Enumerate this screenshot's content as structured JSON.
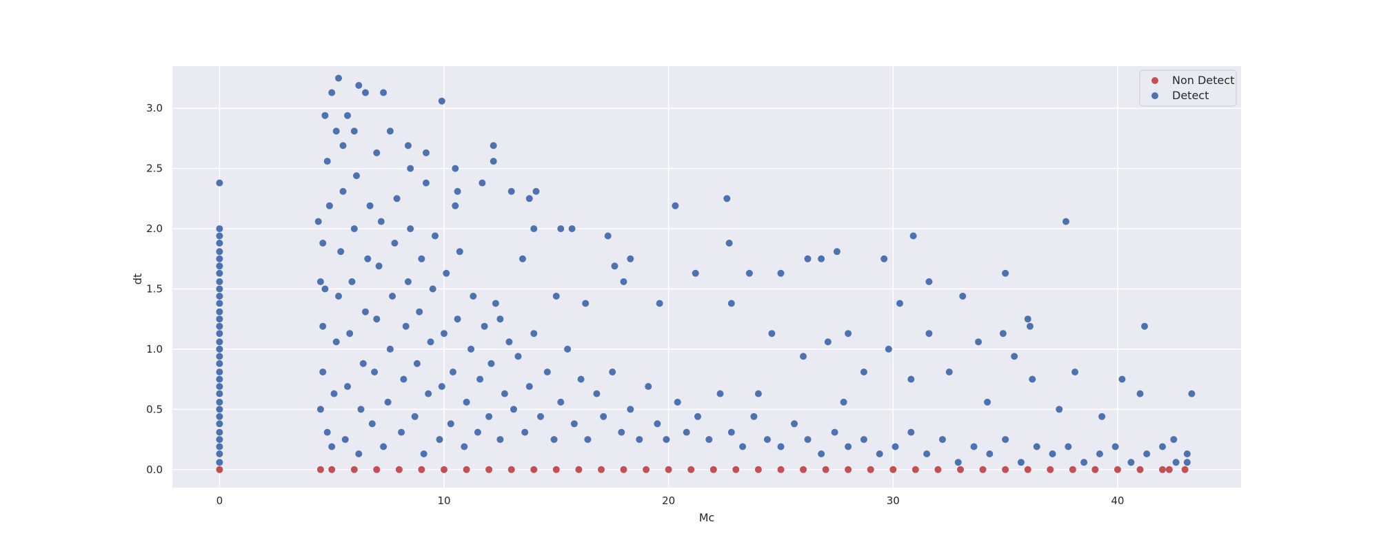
{
  "chart_data": {
    "type": "scatter",
    "title": "",
    "xlabel": "Mc",
    "ylabel": "dt",
    "xlim": [
      -2.1,
      45.5
    ],
    "ylim": [
      -0.15,
      3.35
    ],
    "xticks": [
      0,
      10,
      20,
      30,
      40
    ],
    "yticks": [
      0.0,
      0.5,
      1.0,
      1.5,
      2.0,
      2.5,
      3.0
    ],
    "grid": true,
    "legend_position": "top-right",
    "colors": {
      "background": "#eaeaf2",
      "grid": "#ffffff",
      "non_detect": "#c44e52",
      "detect": "#4c72b0"
    },
    "series": [
      {
        "name": "Non Detect",
        "color": "#c44e52",
        "points": [
          [
            0,
            0
          ],
          [
            4.5,
            0
          ],
          [
            5,
            0
          ],
          [
            6,
            0
          ],
          [
            7,
            0
          ],
          [
            8,
            0
          ],
          [
            9,
            0
          ],
          [
            10,
            0
          ],
          [
            11,
            0
          ],
          [
            12,
            0
          ],
          [
            13,
            0
          ],
          [
            14,
            0
          ],
          [
            15,
            0
          ],
          [
            16,
            0
          ],
          [
            17,
            0
          ],
          [
            18,
            0
          ],
          [
            19,
            0
          ],
          [
            20,
            0
          ],
          [
            21,
            0
          ],
          [
            22,
            0
          ],
          [
            23,
            0
          ],
          [
            24,
            0
          ],
          [
            25,
            0
          ],
          [
            26,
            0
          ],
          [
            27,
            0
          ],
          [
            28,
            0
          ],
          [
            29,
            0
          ],
          [
            30,
            0
          ],
          [
            31,
            0
          ],
          [
            32,
            0
          ],
          [
            33,
            0
          ],
          [
            34,
            0
          ],
          [
            35,
            0
          ],
          [
            36,
            0
          ],
          [
            37,
            0
          ],
          [
            38,
            0
          ],
          [
            39,
            0
          ],
          [
            40,
            0
          ],
          [
            41,
            0
          ],
          [
            42,
            0
          ],
          [
            42.3,
            0
          ],
          [
            43,
            0
          ]
        ]
      },
      {
        "name": "Detect",
        "color": "#4c72b0",
        "points": [
          [
            0,
            0.06
          ],
          [
            0,
            0.13
          ],
          [
            0,
            0.19
          ],
          [
            0,
            0.25
          ],
          [
            0,
            0.31
          ],
          [
            0,
            0.38
          ],
          [
            0,
            0.44
          ],
          [
            0,
            0.5
          ],
          [
            0,
            0.56
          ],
          [
            0,
            0.63
          ],
          [
            0,
            0.69
          ],
          [
            0,
            0.75
          ],
          [
            0,
            0.81
          ],
          [
            0,
            0.88
          ],
          [
            0,
            0.94
          ],
          [
            0,
            1.0
          ],
          [
            0,
            1.06
          ],
          [
            0,
            1.13
          ],
          [
            0,
            1.19
          ],
          [
            0,
            1.25
          ],
          [
            0,
            1.31
          ],
          [
            0,
            1.38
          ],
          [
            0,
            1.44
          ],
          [
            0,
            1.5
          ],
          [
            0,
            1.56
          ],
          [
            0,
            1.63
          ],
          [
            0,
            1.69
          ],
          [
            0,
            1.75
          ],
          [
            0,
            1.81
          ],
          [
            0,
            1.88
          ],
          [
            0,
            1.94
          ],
          [
            0,
            2.0
          ],
          [
            0,
            2.38
          ],
          [
            4.4,
            2.06
          ],
          [
            4.5,
            1.56
          ],
          [
            4.6,
            1.88
          ],
          [
            4.7,
            2.94
          ],
          [
            4.8,
            2.56
          ],
          [
            5.0,
            3.13
          ],
          [
            5.2,
            2.81
          ],
          [
            5.3,
            3.25
          ],
          [
            5.5,
            2.69
          ],
          [
            5.7,
            2.94
          ],
          [
            6.0,
            2.81
          ],
          [
            6.2,
            3.19
          ],
          [
            6.5,
            3.13
          ],
          [
            7.0,
            2.63
          ],
          [
            7.3,
            3.13
          ],
          [
            7.6,
            2.81
          ],
          [
            8.4,
            2.69
          ],
          [
            8.5,
            2.5
          ],
          [
            9.2,
            2.63
          ],
          [
            9.2,
            2.38
          ],
          [
            9.9,
            3.06
          ],
          [
            10.5,
            2.5
          ],
          [
            10.6,
            2.31
          ],
          [
            10.5,
            2.19
          ],
          [
            11.7,
            2.38
          ],
          [
            12.2,
            2.69
          ],
          [
            12.2,
            2.56
          ],
          [
            13.0,
            2.31
          ],
          [
            13.8,
            2.25
          ],
          [
            14.1,
            2.31
          ],
          [
            14.0,
            2.0
          ],
          [
            15.2,
            2.0
          ],
          [
            15.7,
            2.0
          ],
          [
            17.3,
            1.94
          ],
          [
            17.6,
            1.69
          ],
          [
            18.3,
            1.75
          ],
          [
            20.3,
            2.19
          ],
          [
            22.6,
            2.25
          ],
          [
            22.7,
            1.88
          ],
          [
            26.2,
            1.75
          ],
          [
            26.8,
            1.75
          ],
          [
            27.5,
            1.81
          ],
          [
            29.6,
            1.75
          ],
          [
            30.9,
            1.94
          ],
          [
            31.6,
            1.56
          ],
          [
            33.1,
            1.44
          ],
          [
            35.0,
            1.63
          ],
          [
            36.0,
            1.25
          ],
          [
            36.1,
            1.19
          ],
          [
            37.7,
            2.06
          ],
          [
            41.2,
            1.19
          ],
          [
            40.2,
            0.75
          ],
          [
            41.0,
            0.63
          ],
          [
            43.3,
            0.63
          ],
          [
            38.1,
            0.81
          ],
          [
            36.2,
            0.75
          ],
          [
            35.4,
            0.94
          ],
          [
            34.9,
            1.13
          ],
          [
            33.8,
            1.06
          ],
          [
            32.5,
            0.81
          ],
          [
            31.6,
            1.13
          ],
          [
            30.3,
            1.38
          ],
          [
            29.8,
            1.0
          ],
          [
            28.7,
            0.81
          ],
          [
            28.0,
            1.13
          ],
          [
            27.1,
            1.06
          ],
          [
            26.0,
            0.94
          ],
          [
            25.0,
            1.63
          ],
          [
            24.6,
            1.13
          ],
          [
            23.6,
            1.63
          ],
          [
            22.8,
            1.38
          ],
          [
            21.2,
            1.63
          ],
          [
            19.6,
            1.38
          ],
          [
            18.0,
            1.56
          ],
          [
            16.3,
            1.38
          ],
          [
            15.0,
            1.44
          ],
          [
            13.5,
            1.75
          ],
          [
            12.5,
            1.25
          ],
          [
            24.0,
            0.63
          ],
          [
            27.8,
            0.56
          ],
          [
            30.8,
            0.75
          ],
          [
            34.2,
            0.56
          ],
          [
            37.4,
            0.5
          ],
          [
            39.3,
            0.44
          ],
          [
            42.5,
            0.25
          ],
          [
            4.5,
            0.5
          ],
          [
            4.6,
            0.81
          ],
          [
            4.6,
            1.19
          ],
          [
            4.7,
            1.5
          ],
          [
            4.8,
            0.31
          ],
          [
            4.9,
            2.19
          ],
          [
            5.0,
            0.19
          ],
          [
            5.1,
            0.63
          ],
          [
            5.2,
            1.06
          ],
          [
            5.3,
            1.44
          ],
          [
            5.4,
            1.81
          ],
          [
            5.5,
            2.31
          ],
          [
            5.6,
            0.25
          ],
          [
            5.7,
            0.69
          ],
          [
            5.8,
            1.13
          ],
          [
            5.9,
            1.56
          ],
          [
            6.0,
            2.0
          ],
          [
            6.1,
            2.44
          ],
          [
            6.2,
            0.13
          ],
          [
            6.3,
            0.5
          ],
          [
            6.4,
            0.88
          ],
          [
            6.5,
            1.31
          ],
          [
            6.6,
            1.75
          ],
          [
            6.7,
            2.19
          ],
          [
            6.8,
            0.38
          ],
          [
            6.9,
            0.81
          ],
          [
            7.0,
            1.25
          ],
          [
            7.1,
            1.69
          ],
          [
            7.2,
            2.06
          ],
          [
            7.3,
            0.19
          ],
          [
            7.5,
            0.56
          ],
          [
            7.6,
            1.0
          ],
          [
            7.7,
            1.44
          ],
          [
            7.8,
            1.88
          ],
          [
            7.9,
            2.25
          ],
          [
            8.1,
            0.31
          ],
          [
            8.2,
            0.75
          ],
          [
            8.3,
            1.19
          ],
          [
            8.4,
            1.56
          ],
          [
            8.5,
            2.0
          ],
          [
            8.7,
            0.44
          ],
          [
            8.8,
            0.88
          ],
          [
            8.9,
            1.31
          ],
          [
            9.0,
            1.75
          ],
          [
            9.1,
            0.13
          ],
          [
            9.3,
            0.63
          ],
          [
            9.4,
            1.06
          ],
          [
            9.5,
            1.5
          ],
          [
            9.6,
            1.94
          ],
          [
            9.8,
            0.25
          ],
          [
            9.9,
            0.69
          ],
          [
            10.0,
            1.13
          ],
          [
            10.1,
            1.63
          ],
          [
            10.3,
            0.38
          ],
          [
            10.4,
            0.81
          ],
          [
            10.6,
            1.25
          ],
          [
            10.7,
            1.81
          ],
          [
            10.9,
            0.19
          ],
          [
            11.0,
            0.56
          ],
          [
            11.2,
            1.0
          ],
          [
            11.3,
            1.44
          ],
          [
            11.5,
            0.31
          ],
          [
            11.6,
            0.75
          ],
          [
            11.8,
            1.19
          ],
          [
            12.0,
            0.44
          ],
          [
            12.1,
            0.88
          ],
          [
            12.3,
            1.38
          ],
          [
            12.5,
            0.25
          ],
          [
            12.7,
            0.63
          ],
          [
            12.9,
            1.06
          ],
          [
            13.1,
            0.5
          ],
          [
            13.3,
            0.94
          ],
          [
            13.6,
            0.31
          ],
          [
            13.8,
            0.69
          ],
          [
            14.0,
            1.13
          ],
          [
            14.3,
            0.44
          ],
          [
            14.6,
            0.81
          ],
          [
            14.9,
            0.25
          ],
          [
            15.2,
            0.56
          ],
          [
            15.5,
            1.0
          ],
          [
            15.8,
            0.38
          ],
          [
            16.1,
            0.75
          ],
          [
            16.4,
            0.25
          ],
          [
            16.8,
            0.63
          ],
          [
            17.1,
            0.44
          ],
          [
            17.5,
            0.81
          ],
          [
            17.9,
            0.31
          ],
          [
            18.3,
            0.5
          ],
          [
            18.7,
            0.25
          ],
          [
            19.1,
            0.69
          ],
          [
            19.5,
            0.38
          ],
          [
            19.9,
            0.25
          ],
          [
            20.4,
            0.56
          ],
          [
            20.8,
            0.31
          ],
          [
            21.3,
            0.44
          ],
          [
            21.8,
            0.25
          ],
          [
            22.3,
            0.63
          ],
          [
            22.8,
            0.31
          ],
          [
            23.3,
            0.19
          ],
          [
            23.8,
            0.44
          ],
          [
            24.4,
            0.25
          ],
          [
            25.0,
            0.19
          ],
          [
            25.6,
            0.38
          ],
          [
            26.2,
            0.25
          ],
          [
            26.8,
            0.13
          ],
          [
            27.4,
            0.31
          ],
          [
            28.0,
            0.19
          ],
          [
            28.7,
            0.25
          ],
          [
            29.4,
            0.13
          ],
          [
            30.1,
            0.19
          ],
          [
            30.8,
            0.31
          ],
          [
            31.5,
            0.13
          ],
          [
            32.2,
            0.25
          ],
          [
            32.9,
            0.06
          ],
          [
            33.6,
            0.19
          ],
          [
            34.3,
            0.13
          ],
          [
            35.0,
            0.25
          ],
          [
            35.7,
            0.06
          ],
          [
            36.4,
            0.19
          ],
          [
            37.1,
            0.13
          ],
          [
            37.8,
            0.19
          ],
          [
            38.5,
            0.06
          ],
          [
            39.2,
            0.13
          ],
          [
            39.9,
            0.19
          ],
          [
            40.6,
            0.06
          ],
          [
            41.3,
            0.13
          ],
          [
            42.0,
            0.19
          ],
          [
            42.6,
            0.06
          ],
          [
            43.1,
            0.13
          ],
          [
            43.1,
            0.06
          ]
        ]
      }
    ]
  },
  "legend": [
    {
      "label": "Non Detect",
      "color": "#c44e52"
    },
    {
      "label": "Detect",
      "color": "#4c72b0"
    }
  ]
}
